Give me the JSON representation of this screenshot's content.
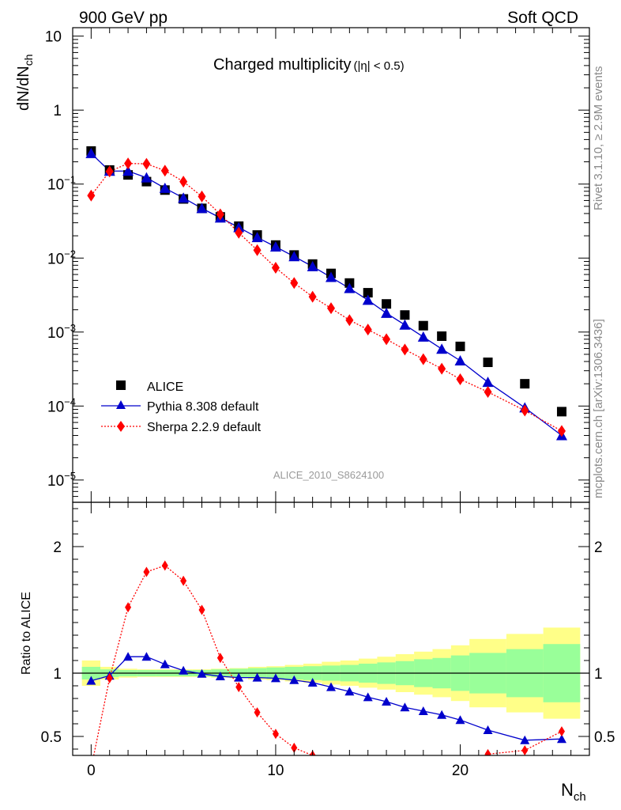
{
  "header": {
    "left": "900 GeV pp",
    "right": "Soft QCD"
  },
  "side": {
    "rivet": "Rivet 3.1.10, ≥ 2.9M events",
    "mcplots": "mcplots.cern.ch [arXiv:1306.3436]"
  },
  "chart_data": [
    {
      "type": "scatter",
      "title": "Charged multiplicity",
      "title_suffix": "(|η| < 0.5)",
      "ylabel": "dN/dN",
      "ylabel_sub": "ch",
      "yscale": "log",
      "ylim": [
        5e-06,
        13
      ],
      "xlim": [
        -1,
        27
      ],
      "yticks": [
        {
          "v": 10,
          "label": "10",
          "exp": ""
        },
        {
          "v": 1,
          "label": "1",
          "exp": ""
        },
        {
          "v": 0.1,
          "label": "10",
          "exp": "−1"
        },
        {
          "v": 0.01,
          "label": "10",
          "exp": "−2"
        },
        {
          "v": 0.001,
          "label": "10",
          "exp": "−3"
        },
        {
          "v": 0.0001,
          "label": "10",
          "exp": "−4"
        },
        {
          "v": 1e-05,
          "label": "10",
          "exp": "−5"
        }
      ],
      "watermark": "ALICE_2010_S8624100",
      "legend_position": "bottom-left",
      "series": [
        {
          "name": "ALICE",
          "color": "#000000",
          "marker": "square",
          "x": [
            0,
            1,
            2,
            3,
            4,
            5,
            6,
            7,
            8,
            9,
            10,
            11,
            12,
            13,
            14,
            15,
            16,
            17,
            18,
            19,
            20,
            21.5,
            23.5,
            25.5
          ],
          "y": [
            0.28,
            0.155,
            0.133,
            0.108,
            0.083,
            0.063,
            0.047,
            0.036,
            0.027,
            0.0205,
            0.015,
            0.011,
            0.0083,
            0.0062,
            0.0046,
            0.0034,
            0.0024,
            0.0017,
            0.00122,
            0.00088,
            0.00064,
            0.00039,
            0.0002,
            8.4e-05
          ]
        },
        {
          "name": "Pythia 8.308 default",
          "color": "#0000cc",
          "marker": "triangle",
          "line": "solid",
          "x": [
            0,
            1,
            2,
            3,
            4,
            5,
            6,
            7,
            8,
            9,
            10,
            11,
            12,
            13,
            14,
            15,
            16,
            17,
            18,
            19,
            20,
            21.5,
            23.5,
            25.5
          ],
          "y": [
            0.26,
            0.15,
            0.15,
            0.122,
            0.088,
            0.065,
            0.047,
            0.035,
            0.026,
            0.019,
            0.0142,
            0.0105,
            0.0077,
            0.0055,
            0.0039,
            0.0027,
            0.0018,
            0.00125,
            0.00086,
            0.00059,
            0.00041,
            0.00021,
            9.5e-05,
            4e-05
          ]
        },
        {
          "name": "Sherpa 2.2.9 default",
          "color": "#ff0000",
          "marker": "diamond",
          "line": "dotted",
          "x": [
            0,
            1,
            2,
            3,
            4,
            5,
            6,
            7,
            8,
            9,
            10,
            11,
            12,
            13,
            14,
            15,
            16,
            17,
            18,
            19,
            20,
            21.5,
            23.5,
            25.5
          ],
          "y": [
            0.07,
            0.148,
            0.19,
            0.188,
            0.152,
            0.108,
            0.068,
            0.039,
            0.022,
            0.0128,
            0.0074,
            0.0046,
            0.003,
            0.0021,
            0.00145,
            0.00108,
            0.0008,
            0.00058,
            0.00043,
            0.00032,
            0.00023,
            0.000155,
            8.7e-05,
            4.6e-05
          ]
        }
      ]
    },
    {
      "type": "line",
      "ylabel": "Ratio to ALICE",
      "xlabel": "N",
      "xlabel_sub": "ch",
      "ylim": [
        0.35,
        2.35
      ],
      "xlim": [
        -1,
        27
      ],
      "yticks": [
        0.5,
        1,
        2
      ],
      "xticks": [
        0,
        10,
        20
      ],
      "reference": 1,
      "bands": {
        "edges": [
          -0.5,
          0.5,
          1.5,
          2.5,
          3.5,
          4.5,
          5.5,
          6.5,
          7.5,
          8.5,
          9.5,
          10.5,
          11.5,
          12.5,
          13.5,
          14.5,
          15.5,
          16.5,
          17.5,
          18.5,
          19.5,
          20.5,
          22.5,
          24.5,
          26.5
        ],
        "inner_color": "#99ff99",
        "outer_color": "#ffff88",
        "inner_half_width": [
          0.05,
          0.03,
          0.025,
          0.025,
          0.025,
          0.025,
          0.025,
          0.03,
          0.035,
          0.04,
          0.045,
          0.05,
          0.055,
          0.06,
          0.065,
          0.075,
          0.085,
          0.095,
          0.11,
          0.12,
          0.14,
          0.16,
          0.19,
          0.23
        ],
        "outer_half_width": [
          0.1,
          0.05,
          0.035,
          0.03,
          0.03,
          0.03,
          0.03,
          0.035,
          0.04,
          0.05,
          0.055,
          0.065,
          0.075,
          0.09,
          0.1,
          0.115,
          0.13,
          0.15,
          0.17,
          0.19,
          0.22,
          0.27,
          0.31,
          0.36
        ]
      },
      "series": [
        {
          "name": "Pythia 8.308 default",
          "color": "#0000cc",
          "marker": "triangle",
          "line": "solid",
          "x": [
            0,
            1,
            2,
            3,
            4,
            5,
            6,
            7,
            8,
            9,
            10,
            11,
            12,
            13,
            14,
            15,
            16,
            17,
            18,
            19,
            20,
            21.5,
            23.5,
            25.5
          ],
          "y": [
            0.94,
            0.98,
            1.13,
            1.13,
            1.07,
            1.02,
            0.995,
            0.975,
            0.965,
            0.965,
            0.96,
            0.945,
            0.925,
            0.89,
            0.855,
            0.81,
            0.775,
            0.73,
            0.7,
            0.67,
            0.63,
            0.55,
            0.47,
            0.48
          ]
        },
        {
          "name": "Sherpa 2.2.9 default",
          "color": "#ff0000",
          "marker": "diamond",
          "line": "dotted",
          "x": [
            0,
            1,
            2,
            3,
            4,
            5,
            6,
            7,
            8,
            9,
            10,
            11,
            12,
            13,
            14,
            15,
            16,
            17,
            18,
            19,
            20,
            21.5,
            23.5,
            25.5
          ],
          "y": [
            0.25,
            0.96,
            1.52,
            1.8,
            1.85,
            1.73,
            1.5,
            1.12,
            0.89,
            0.69,
            0.52,
            0.41,
            0.35,
            0.32,
            0.3,
            0.28,
            0.26,
            0.25,
            0.25,
            0.26,
            0.28,
            0.36,
            0.39,
            0.54
          ]
        }
      ]
    }
  ]
}
